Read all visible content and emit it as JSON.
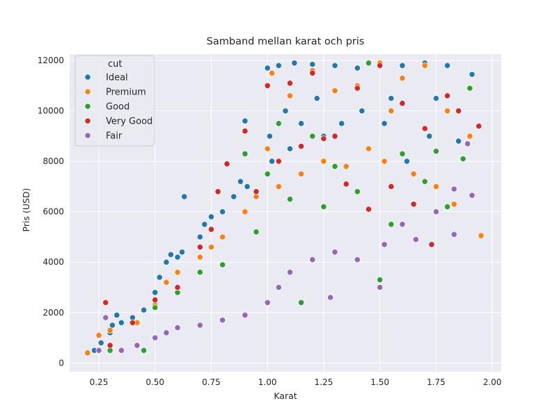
{
  "chart_data": {
    "type": "scatter",
    "title": "Samband mellan karat och pris",
    "xlabel": "Karat",
    "ylabel": "Pris (USD)",
    "xlim": [
      0.12,
      2.04
    ],
    "ylim": [
      -350,
      12250
    ],
    "xticks": [
      0.25,
      0.5,
      0.75,
      1.0,
      1.25,
      1.5,
      1.75,
      2.0
    ],
    "xtick_labels": [
      "0.25",
      "0.50",
      "0.75",
      "1.00",
      "1.25",
      "1.50",
      "1.75",
      "2.00"
    ],
    "yticks": [
      0,
      2000,
      4000,
      6000,
      8000,
      10000,
      12000
    ],
    "ytick_labels": [
      "0",
      "2000",
      "4000",
      "6000",
      "8000",
      "10000",
      "12000"
    ],
    "grid": true,
    "background": "#eaeaf2",
    "legend": {
      "title": "cut",
      "placement": "top-left"
    },
    "series": [
      {
        "name": "Ideal",
        "color": "#1f77b4",
        "points": [
          [
            0.23,
            500
          ],
          [
            0.26,
            800
          ],
          [
            0.3,
            1200
          ],
          [
            0.31,
            1500
          ],
          [
            0.33,
            1900
          ],
          [
            0.35,
            1600
          ],
          [
            0.4,
            1800
          ],
          [
            0.45,
            2100
          ],
          [
            0.5,
            2800
          ],
          [
            0.52,
            3400
          ],
          [
            0.55,
            4000
          ],
          [
            0.57,
            4300
          ],
          [
            0.6,
            4200
          ],
          [
            0.62,
            4400
          ],
          [
            0.63,
            6600
          ],
          [
            0.7,
            5000
          ],
          [
            0.72,
            5500
          ],
          [
            0.75,
            5800
          ],
          [
            0.8,
            6000
          ],
          [
            0.85,
            6600
          ],
          [
            0.88,
            7200
          ],
          [
            0.9,
            9600
          ],
          [
            0.91,
            7000
          ],
          [
            1.0,
            11700
          ],
          [
            1.01,
            9000
          ],
          [
            1.02,
            8000
          ],
          [
            1.05,
            11800
          ],
          [
            1.08,
            10000
          ],
          [
            1.1,
            8500
          ],
          [
            1.12,
            11900
          ],
          [
            1.15,
            9500
          ],
          [
            1.2,
            11850
          ],
          [
            1.22,
            10500
          ],
          [
            1.25,
            9000
          ],
          [
            1.3,
            11800
          ],
          [
            1.33,
            9500
          ],
          [
            1.4,
            11700
          ],
          [
            1.42,
            10000
          ],
          [
            1.5,
            11900
          ],
          [
            1.52,
            9500
          ],
          [
            1.55,
            10500
          ],
          [
            1.6,
            11800
          ],
          [
            1.62,
            8000
          ],
          [
            1.7,
            11900
          ],
          [
            1.72,
            9000
          ],
          [
            1.75,
            10500
          ],
          [
            1.8,
            11800
          ],
          [
            1.85,
            8800
          ],
          [
            1.91,
            11450
          ]
        ]
      },
      {
        "name": "Premium",
        "color": "#ff7f0e",
        "points": [
          [
            0.2,
            400
          ],
          [
            0.25,
            1100
          ],
          [
            0.3,
            1300
          ],
          [
            0.42,
            1600
          ],
          [
            0.5,
            2300
          ],
          [
            0.55,
            3200
          ],
          [
            0.6,
            3600
          ],
          [
            0.7,
            4200
          ],
          [
            0.75,
            4600
          ],
          [
            0.8,
            5000
          ],
          [
            0.9,
            6000
          ],
          [
            0.95,
            6600
          ],
          [
            1.0,
            8500
          ],
          [
            1.02,
            11500
          ],
          [
            1.05,
            7000
          ],
          [
            1.1,
            10600
          ],
          [
            1.15,
            7500
          ],
          [
            1.2,
            11600
          ],
          [
            1.25,
            8000
          ],
          [
            1.3,
            10800
          ],
          [
            1.35,
            7800
          ],
          [
            1.4,
            11000
          ],
          [
            1.45,
            8500
          ],
          [
            1.5,
            11900
          ],
          [
            1.52,
            8000
          ],
          [
            1.55,
            10000
          ],
          [
            1.6,
            11300
          ],
          [
            1.65,
            7500
          ],
          [
            1.7,
            11800
          ],
          [
            1.75,
            7000
          ],
          [
            1.8,
            10000
          ],
          [
            1.83,
            6300
          ],
          [
            1.9,
            9000
          ],
          [
            1.95,
            5050
          ]
        ]
      },
      {
        "name": "Good",
        "color": "#2ca02c",
        "points": [
          [
            0.3,
            500
          ],
          [
            0.45,
            500
          ],
          [
            0.5,
            2200
          ],
          [
            0.6,
            2800
          ],
          [
            0.7,
            3600
          ],
          [
            0.8,
            3900
          ],
          [
            0.9,
            8300
          ],
          [
            0.95,
            5200
          ],
          [
            1.0,
            7500
          ],
          [
            1.05,
            9500
          ],
          [
            1.1,
            6500
          ],
          [
            1.15,
            2400
          ],
          [
            1.2,
            9000
          ],
          [
            1.25,
            6200
          ],
          [
            1.3,
            7800
          ],
          [
            1.4,
            6800
          ],
          [
            1.45,
            11900
          ],
          [
            1.5,
            3300
          ],
          [
            1.55,
            5500
          ],
          [
            1.6,
            8300
          ],
          [
            1.7,
            7200
          ],
          [
            1.75,
            8400
          ],
          [
            1.8,
            6200
          ],
          [
            1.87,
            8100
          ],
          [
            1.9,
            10900
          ]
        ]
      },
      {
        "name": "Very Good",
        "color": "#d62728",
        "points": [
          [
            0.28,
            2400
          ],
          [
            0.3,
            700
          ],
          [
            0.4,
            1600
          ],
          [
            0.5,
            2500
          ],
          [
            0.6,
            3000
          ],
          [
            0.7,
            4600
          ],
          [
            0.75,
            5300
          ],
          [
            0.78,
            6800
          ],
          [
            0.82,
            7900
          ],
          [
            0.9,
            9200
          ],
          [
            0.95,
            6800
          ],
          [
            1.0,
            11000
          ],
          [
            1.05,
            8000
          ],
          [
            1.1,
            11100
          ],
          [
            1.15,
            8600
          ],
          [
            1.2,
            11500
          ],
          [
            1.25,
            8900
          ],
          [
            1.3,
            9000
          ],
          [
            1.35,
            7100
          ],
          [
            1.4,
            10900
          ],
          [
            1.45,
            6100
          ],
          [
            1.5,
            11800
          ],
          [
            1.55,
            7000
          ],
          [
            1.6,
            10300
          ],
          [
            1.65,
            6300
          ],
          [
            1.7,
            9300
          ],
          [
            1.73,
            4700
          ],
          [
            1.8,
            10600
          ],
          [
            1.85,
            10000
          ],
          [
            1.94,
            9400
          ]
        ]
      },
      {
        "name": "Fair",
        "color": "#9467bd",
        "points": [
          [
            0.25,
            500
          ],
          [
            0.28,
            1800
          ],
          [
            0.35,
            500
          ],
          [
            0.42,
            700
          ],
          [
            0.5,
            1000
          ],
          [
            0.55,
            1200
          ],
          [
            0.6,
            1400
          ],
          [
            0.7,
            1500
          ],
          [
            0.8,
            1700
          ],
          [
            0.9,
            1900
          ],
          [
            1.0,
            2400
          ],
          [
            1.05,
            3000
          ],
          [
            1.1,
            3600
          ],
          [
            1.2,
            4100
          ],
          [
            1.28,
            2600
          ],
          [
            1.3,
            4400
          ],
          [
            1.4,
            4100
          ],
          [
            1.5,
            3000
          ],
          [
            1.52,
            4700
          ],
          [
            1.6,
            5500
          ],
          [
            1.66,
            4900
          ],
          [
            1.75,
            6000
          ],
          [
            1.83,
            6900
          ],
          [
            1.83,
            5100
          ],
          [
            1.89,
            8700
          ],
          [
            1.91,
            6650
          ]
        ]
      }
    ]
  }
}
